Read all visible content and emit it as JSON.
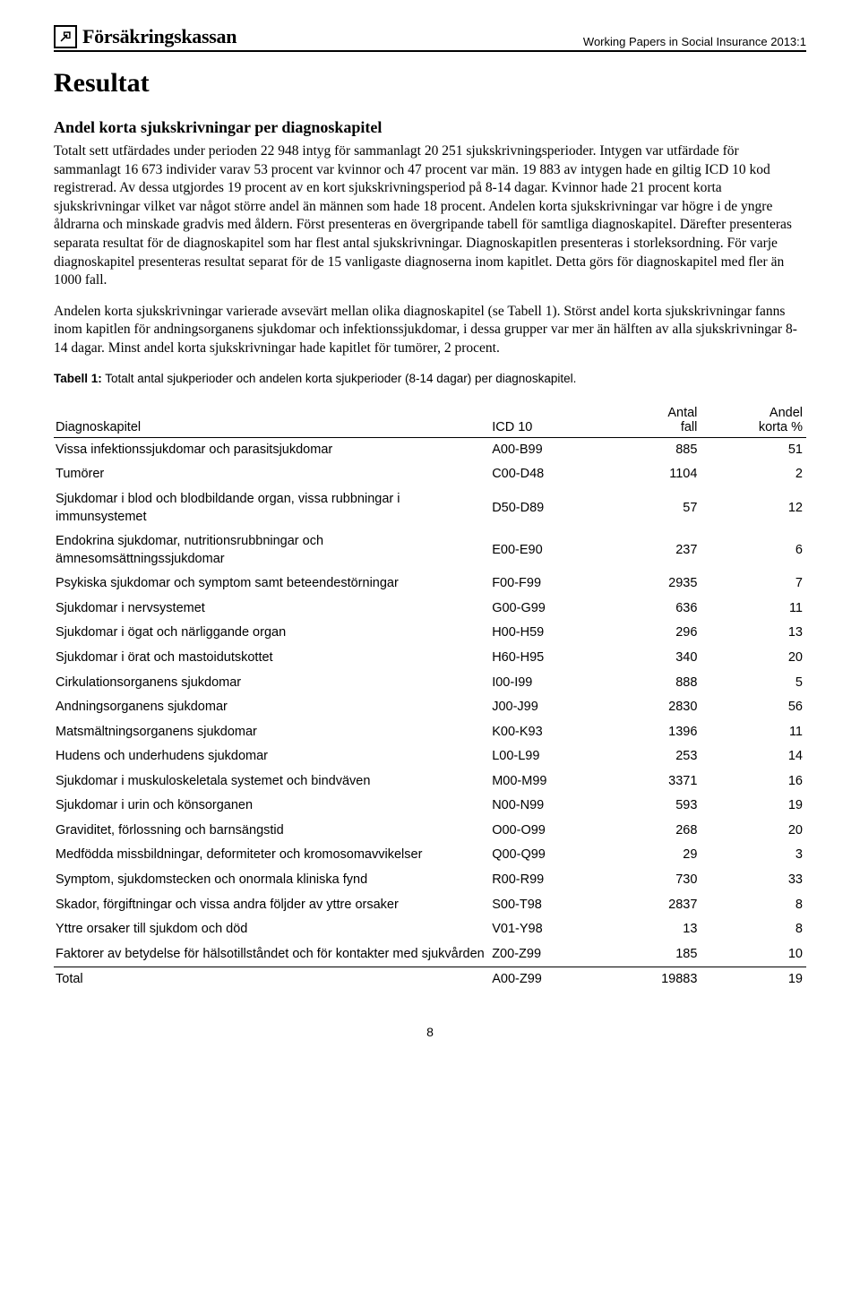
{
  "header": {
    "logo_text": "Försäkringskassan",
    "series_label": "Working Papers in Social Insurance 2013:1"
  },
  "title": "Resultat",
  "subtitle": "Andel korta sjukskrivningar per diagnoskapitel",
  "paragraph1": "Totalt sett utfärdades under perioden 22 948 intyg för sammanlagt 20 251 sjukskrivningsperioder. Intygen var utfärdade för sammanlagt 16 673 individer varav 53 procent var kvinnor och 47 procent var män. 19 883 av intygen hade en giltig ICD 10 kod registrerad. Av dessa utgjordes 19 procent av en kort sjukskrivningsperiod på 8-14 dagar. Kvinnor hade 21 procent korta sjukskrivningar vilket var något större andel än männen som hade 18 procent. Andelen korta sjukskrivningar var högre i de yngre åldrarna och minskade gradvis med åldern. Först presenteras en övergripande tabell för samtliga diagnoskapitel. Därefter presenteras separata resultat för de diagnoskapitel som har flest antal sjukskrivningar. Diagnoskapitlen presenteras i storleksordning. För varje diagnoskapitel presenteras resultat separat för de 15 vanligaste diagnoserna inom kapitlet. Detta görs för diagnoskapitel med fler än 1000 fall.",
  "paragraph2": "Andelen korta sjukskrivningar varierade avsevärt mellan olika diagnoskapitel (se Tabell 1). Störst andel korta sjukskrivningar fanns inom kapitlen för andningsorganens sjukdomar och infektionssjukdomar, i dessa grupper var mer än hälften av alla sjukskrivningar 8-14 dagar. Minst andel korta sjukskrivningar hade kapitlet för tumörer, 2 procent.",
  "table_caption_bold": "Tabell 1:",
  "table_caption_rest": " Totalt antal sjukperioder och andelen korta sjukperioder (8-14 dagar) per diagnoskapitel.",
  "table": {
    "headers": {
      "chapter": "Diagnoskapitel",
      "icd": "ICD 10",
      "cases": "Antal fall",
      "pct": "Andel korta %"
    },
    "rows": [
      {
        "chapter": "Vissa infektionssjukdomar och parasitsjukdomar",
        "icd": "A00-B99",
        "cases": "885",
        "pct": "51"
      },
      {
        "chapter": "Tumörer",
        "icd": "C00-D48",
        "cases": "1104",
        "pct": "2"
      },
      {
        "chapter": "Sjukdomar i blod och blodbildande organ, vissa rubbningar i immunsystemet",
        "icd": "D50-D89",
        "cases": "57",
        "pct": "12"
      },
      {
        "chapter": "Endokrina sjukdomar, nutritionsrubbningar och ämnesomsättningssjukdomar",
        "icd": "E00-E90",
        "cases": "237",
        "pct": "6"
      },
      {
        "chapter": "Psykiska sjukdomar och symptom samt beteendestörningar",
        "icd": "F00-F99",
        "cases": "2935",
        "pct": "7"
      },
      {
        "chapter": "Sjukdomar i nervsystemet",
        "icd": "G00-G99",
        "cases": "636",
        "pct": "11"
      },
      {
        "chapter": "Sjukdomar i ögat och närliggande organ",
        "icd": "H00-H59",
        "cases": "296",
        "pct": "13"
      },
      {
        "chapter": "Sjukdomar i örat och mastoidutskottet",
        "icd": "H60-H95",
        "cases": "340",
        "pct": "20"
      },
      {
        "chapter": "Cirkulationsorganens sjukdomar",
        "icd": "I00-I99",
        "cases": "888",
        "pct": "5"
      },
      {
        "chapter": "Andningsorganens sjukdomar",
        "icd": "J00-J99",
        "cases": "2830",
        "pct": "56"
      },
      {
        "chapter": "Matsmältningsorganens sjukdomar",
        "icd": "K00-K93",
        "cases": "1396",
        "pct": "11"
      },
      {
        "chapter": "Hudens och underhudens sjukdomar",
        "icd": "L00-L99",
        "cases": "253",
        "pct": "14"
      },
      {
        "chapter": "Sjukdomar i muskuloskeletala systemet och bindväven",
        "icd": "M00-M99",
        "cases": "3371",
        "pct": "16"
      },
      {
        "chapter": "Sjukdomar i urin och könsorganen",
        "icd": "N00-N99",
        "cases": "593",
        "pct": "19"
      },
      {
        "chapter": "Graviditet, förlossning och barnsängstid",
        "icd": "O00-O99",
        "cases": "268",
        "pct": "20"
      },
      {
        "chapter": "Medfödda missbildningar, deformiteter och kromosomavvikelser",
        "icd": "Q00-Q99",
        "cases": "29",
        "pct": "3"
      },
      {
        "chapter": "Symptom, sjukdomstecken och onormala kliniska fynd",
        "icd": "R00-R99",
        "cases": "730",
        "pct": "33"
      },
      {
        "chapter": "Skador, förgiftningar och vissa andra följder av yttre orsaker",
        "icd": "S00-T98",
        "cases": "2837",
        "pct": "8"
      },
      {
        "chapter": "Yttre orsaker till sjukdom och död",
        "icd": "V01-Y98",
        "cases": "13",
        "pct": "8"
      },
      {
        "chapter": "Faktorer av betydelse för hälsotillståndet och för kontakter med sjukvården",
        "icd": "Z00-Z99",
        "cases": "185",
        "pct": "10"
      }
    ],
    "total": {
      "chapter": "Total",
      "icd": "A00-Z99",
      "cases": "19883",
      "pct": "19"
    }
  },
  "page_number": "8"
}
